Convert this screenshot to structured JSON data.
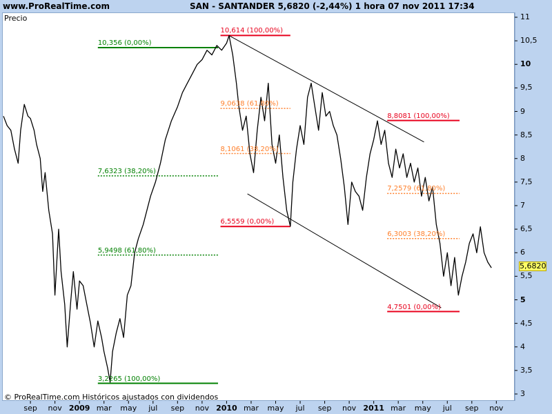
{
  "header": {
    "site": "www.ProRealTime.com",
    "ticker": "SAN - SANTANDER    5,6820 (-2,44%)    1 hora  07 nov 2011 17:34"
  },
  "price_label": "Precio",
  "copyright": "© ProRealTime.com Históricos ajustados con dividendos",
  "last_price_badge": "5,6820",
  "colors": {
    "background": "#bdd3ef",
    "plot": "#ffffff",
    "price_line": "#000000",
    "fib_green": "#008000",
    "fib_red": "#e8001c",
    "fib_orange": "#ff7f2a",
    "badge": "#ffff66"
  },
  "chart_data": {
    "type": "line",
    "title": "SAN - SANTANDER",
    "ylabel": "Precio",
    "ylim": [
      3,
      11
    ],
    "y_ticks": [
      {
        "value": 3,
        "label": "3",
        "major": false
      },
      {
        "value": 3.5,
        "label": "3,5",
        "major": false
      },
      {
        "value": 4,
        "label": "4",
        "major": false
      },
      {
        "value": 4.5,
        "label": "4,5",
        "major": false
      },
      {
        "value": 5,
        "label": "5",
        "major": true
      },
      {
        "value": 5.5,
        "label": "5,5",
        "major": false
      },
      {
        "value": 6,
        "label": "6",
        "major": false
      },
      {
        "value": 6.5,
        "label": "6,5",
        "major": false
      },
      {
        "value": 7,
        "label": "7",
        "major": false
      },
      {
        "value": 7.5,
        "label": "7,5",
        "major": false
      },
      {
        "value": 8,
        "label": "8",
        "major": false
      },
      {
        "value": 8.5,
        "label": "8,5",
        "major": false
      },
      {
        "value": 9,
        "label": "9",
        "major": false
      },
      {
        "value": 9.5,
        "label": "9,5",
        "major": false
      },
      {
        "value": 10,
        "label": "10",
        "major": true
      },
      {
        "value": 10.5,
        "label": "10,5",
        "major": false
      },
      {
        "value": 11,
        "label": "11",
        "major": false
      }
    ],
    "x_ticks": [
      {
        "t": 1,
        "label": "sep",
        "year": false
      },
      {
        "t": 3,
        "label": "nov",
        "year": false
      },
      {
        "t": 5,
        "label": "2009",
        "year": true
      },
      {
        "t": 7,
        "label": "mar",
        "year": false
      },
      {
        "t": 9,
        "label": "may",
        "year": false
      },
      {
        "t": 11,
        "label": "jul",
        "year": false
      },
      {
        "t": 13,
        "label": "sep",
        "year": false
      },
      {
        "t": 15,
        "label": "nov",
        "year": false
      },
      {
        "t": 17,
        "label": "2010",
        "year": true
      },
      {
        "t": 19,
        "label": "mar",
        "year": false
      },
      {
        "t": 21,
        "label": "may",
        "year": false
      },
      {
        "t": 23,
        "label": "jul",
        "year": false
      },
      {
        "t": 25,
        "label": "sep",
        "year": false
      },
      {
        "t": 27,
        "label": "nov",
        "year": false
      },
      {
        "t": 29,
        "label": "2011",
        "year": true
      },
      {
        "t": 31,
        "label": "mar",
        "year": false
      },
      {
        "t": 33,
        "label": "may",
        "year": false
      },
      {
        "t": 35,
        "label": "jul",
        "year": false
      },
      {
        "t": 37,
        "label": "sep",
        "year": false
      },
      {
        "t": 39,
        "label": "nov",
        "year": false
      }
    ],
    "x_range": [
      -1.2,
      39.6
    ],
    "series": [
      {
        "values": [
          [
            -1.2,
            8.9
          ],
          [
            -0.9,
            8.7
          ],
          [
            -0.6,
            8.6
          ],
          [
            -0.3,
            8.2
          ],
          [
            0.0,
            7.9
          ],
          [
            0.2,
            8.6
          ],
          [
            0.5,
            9.15
          ],
          [
            0.8,
            8.9
          ],
          [
            1.0,
            8.85
          ],
          [
            1.3,
            8.6
          ],
          [
            1.5,
            8.3
          ],
          [
            1.8,
            8.0
          ],
          [
            2.0,
            7.3
          ],
          [
            2.2,
            7.7
          ],
          [
            2.5,
            6.9
          ],
          [
            2.8,
            6.4
          ],
          [
            3.0,
            5.1
          ],
          [
            3.3,
            6.5
          ],
          [
            3.5,
            5.6
          ],
          [
            3.8,
            4.9
          ],
          [
            4.0,
            4.0
          ],
          [
            4.3,
            5.0
          ],
          [
            4.5,
            5.6
          ],
          [
            4.8,
            4.8
          ],
          [
            5.0,
            5.4
          ],
          [
            5.3,
            5.3
          ],
          [
            5.6,
            4.9
          ],
          [
            5.9,
            4.5
          ],
          [
            6.2,
            4.0
          ],
          [
            6.5,
            4.55
          ],
          [
            6.8,
            4.2
          ],
          [
            7.0,
            3.9
          ],
          [
            7.3,
            3.55
          ],
          [
            7.5,
            3.25
          ],
          [
            7.7,
            3.9
          ],
          [
            8.0,
            4.3
          ],
          [
            8.3,
            4.6
          ],
          [
            8.6,
            4.2
          ],
          [
            8.9,
            5.1
          ],
          [
            9.2,
            5.3
          ],
          [
            9.5,
            6.0
          ],
          [
            9.8,
            6.3
          ],
          [
            10.2,
            6.6
          ],
          [
            10.5,
            6.9
          ],
          [
            10.8,
            7.2
          ],
          [
            11.2,
            7.5
          ],
          [
            11.6,
            7.9
          ],
          [
            12.0,
            8.4
          ],
          [
            12.5,
            8.8
          ],
          [
            13.0,
            9.1
          ],
          [
            13.4,
            9.4
          ],
          [
            13.8,
            9.6
          ],
          [
            14.2,
            9.8
          ],
          [
            14.6,
            10.0
          ],
          [
            15.0,
            10.1
          ],
          [
            15.4,
            10.3
          ],
          [
            15.8,
            10.2
          ],
          [
            16.2,
            10.4
          ],
          [
            16.6,
            10.3
          ],
          [
            17.0,
            10.45
          ],
          [
            17.2,
            10.61
          ],
          [
            17.5,
            10.2
          ],
          [
            17.8,
            9.6
          ],
          [
            18.0,
            9.1
          ],
          [
            18.3,
            8.6
          ],
          [
            18.6,
            8.9
          ],
          [
            18.9,
            8.1
          ],
          [
            19.2,
            7.7
          ],
          [
            19.5,
            8.6
          ],
          [
            19.8,
            9.3
          ],
          [
            20.1,
            8.8
          ],
          [
            20.4,
            9.6
          ],
          [
            20.7,
            8.3
          ],
          [
            21.0,
            7.9
          ],
          [
            21.3,
            8.5
          ],
          [
            21.6,
            7.6
          ],
          [
            21.9,
            6.9
          ],
          [
            22.2,
            6.56
          ],
          [
            22.4,
            7.5
          ],
          [
            22.7,
            8.2
          ],
          [
            23.0,
            8.7
          ],
          [
            23.3,
            8.3
          ],
          [
            23.6,
            9.3
          ],
          [
            23.9,
            9.6
          ],
          [
            24.2,
            9.1
          ],
          [
            24.5,
            8.6
          ],
          [
            24.8,
            9.4
          ],
          [
            25.1,
            8.9
          ],
          [
            25.4,
            9.0
          ],
          [
            25.7,
            8.7
          ],
          [
            26.0,
            8.5
          ],
          [
            26.3,
            8.0
          ],
          [
            26.6,
            7.4
          ],
          [
            26.9,
            6.6
          ],
          [
            27.2,
            7.5
          ],
          [
            27.5,
            7.3
          ],
          [
            27.8,
            7.2
          ],
          [
            28.1,
            6.9
          ],
          [
            28.4,
            7.6
          ],
          [
            28.7,
            8.1
          ],
          [
            29.0,
            8.4
          ],
          [
            29.3,
            8.8
          ],
          [
            29.6,
            8.3
          ],
          [
            29.9,
            8.6
          ],
          [
            30.2,
            7.9
          ],
          [
            30.5,
            7.6
          ],
          [
            30.8,
            8.2
          ],
          [
            31.1,
            7.8
          ],
          [
            31.4,
            8.1
          ],
          [
            31.7,
            7.6
          ],
          [
            32.0,
            7.9
          ],
          [
            32.3,
            7.5
          ],
          [
            32.6,
            7.8
          ],
          [
            32.9,
            7.2
          ],
          [
            33.2,
            7.6
          ],
          [
            33.5,
            7.1
          ],
          [
            33.8,
            7.4
          ],
          [
            34.1,
            6.6
          ],
          [
            34.4,
            6.2
          ],
          [
            34.7,
            5.5
          ],
          [
            35.0,
            6.0
          ],
          [
            35.3,
            5.3
          ],
          [
            35.6,
            5.9
          ],
          [
            35.9,
            5.1
          ],
          [
            36.2,
            5.5
          ],
          [
            36.5,
            5.8
          ],
          [
            36.8,
            6.2
          ],
          [
            37.1,
            6.4
          ],
          [
            37.4,
            6.0
          ],
          [
            37.7,
            6.55
          ],
          [
            38.0,
            6.0
          ],
          [
            38.3,
            5.8
          ],
          [
            38.6,
            5.68
          ]
        ]
      }
    ],
    "fibonacci_levels": [
      {
        "value": 10.356,
        "label": "10,356 (0,00%)",
        "color": "green",
        "style": "solid",
        "t1": 6.5,
        "t2": 16.3
      },
      {
        "value": 7.6323,
        "label": "7,6323 (38,20%)",
        "color": "green",
        "style": "dotted",
        "t1": 6.5,
        "t2": 16.3
      },
      {
        "value": 5.9498,
        "label": "5,9498 (61,80%)",
        "color": "green",
        "style": "dotted",
        "t1": 6.5,
        "t2": 16.3
      },
      {
        "value": 3.2265,
        "label": "3,2265 (100,00%)",
        "color": "green",
        "style": "solid",
        "t1": 6.5,
        "t2": 16.3
      },
      {
        "value": 10.614,
        "label": "10,614 (100,00%)",
        "color": "red",
        "style": "solid",
        "t1": 16.5,
        "t2": 22.2
      },
      {
        "value": 9.0638,
        "label": "9,0638 (61,80%)",
        "color": "orange",
        "style": "dotted",
        "t1": 16.5,
        "t2": 22.2
      },
      {
        "value": 8.1061,
        "label": "8,1061 (38,20%)",
        "color": "orange",
        "style": "dotted",
        "t1": 16.5,
        "t2": 22.2
      },
      {
        "value": 6.5559,
        "label": "6,5559 (0,00%)",
        "color": "red",
        "style": "solid",
        "t1": 16.5,
        "t2": 22.2
      },
      {
        "value": 8.8081,
        "label": "8,8081 (100,00%)",
        "color": "red",
        "style": "solid",
        "t1": 30.1,
        "t2": 36.0
      },
      {
        "value": 7.2579,
        "label": "7,2579 (61,80%)",
        "color": "orange",
        "style": "dotted",
        "t1": 30.1,
        "t2": 36.0
      },
      {
        "value": 6.3003,
        "label": "6,3003 (38,20%)",
        "color": "orange",
        "style": "dotted",
        "t1": 30.1,
        "t2": 36.0
      },
      {
        "value": 4.7501,
        "label": "4,7501 (0,00%)",
        "color": "red",
        "style": "solid",
        "t1": 30.1,
        "t2": 36.0
      }
    ],
    "trendlines": [
      {
        "t1": 17.2,
        "v1": 10.61,
        "t2": 33.1,
        "v2": 8.35
      },
      {
        "t1": 18.7,
        "v1": 7.25,
        "t2": 34.5,
        "v2": 4.83
      }
    ],
    "grid": false,
    "legend": "none"
  }
}
